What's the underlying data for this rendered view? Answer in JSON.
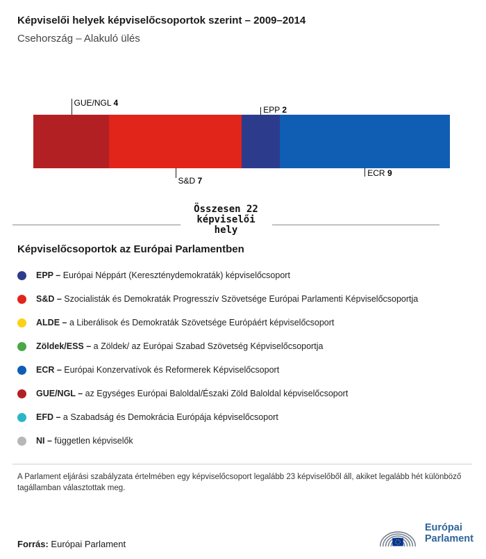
{
  "header": {
    "title": "Képviselői helyek képviselőcsoportok szerint – 2009–2014",
    "subtitle": "Csehország – Alakuló ülés"
  },
  "chart_data": {
    "type": "bar",
    "variant": "horizontal-stacked-seat-bar",
    "title": "Képviselői helyek képviselőcsoportok szerint – 2009–2014",
    "subtitle": "Csehország – Alakuló ülés",
    "total": 22,
    "total_label": "Összesen 22 képviselői hely",
    "segments": [
      {
        "name": "GUE/NGL",
        "value": 4,
        "color": "#b32024",
        "tier": "top-far"
      },
      {
        "name": "S&D",
        "value": 7,
        "color": "#e1251b",
        "tier": "bottom-far"
      },
      {
        "name": "EPP",
        "value": 2,
        "color": "#2d3b8d",
        "tier": "top-near"
      },
      {
        "name": "ECR",
        "value": 9,
        "color": "#0f5eb4",
        "tier": "bottom-near"
      }
    ]
  },
  "legend": {
    "title": "Képviselőcsoportok az Európai Parlamentben",
    "items": [
      {
        "abbr": "EPP –",
        "desc": "Európai Néppárt (Kereszténydemokraták) képviselőcsoport",
        "color": "#2d3b8d"
      },
      {
        "abbr": "S&D –",
        "desc": "Szocialisták és Demokraták Progresszív Szövetsége Európai Parlamenti Képviselőcsoportja",
        "color": "#e1251b"
      },
      {
        "abbr": "ALDE –",
        "desc": "a Liberálisok és Demokraták Szövetsége Európáért képviselőcsoport",
        "color": "#fdd116"
      },
      {
        "abbr": "Zöldek/ESS –",
        "desc": "a Zöldek/ az Európai Szabad Szövetség Képviselőcsoportja",
        "color": "#4ba747"
      },
      {
        "abbr": "ECR –",
        "desc": "Európai Konzervatívok és Reformerek Képviselőcsoport",
        "color": "#0f5eb4"
      },
      {
        "abbr": "GUE/NGL –",
        "desc": "az Egységes Európai Baloldal/Északi Zöld Baloldal képviselőcsoport",
        "color": "#b32024"
      },
      {
        "abbr": "EFD –",
        "desc": "a Szabadság és Demokrácia Európája képviselőcsoport",
        "color": "#2bb6c5"
      },
      {
        "abbr": "NI –",
        "desc": "független képviselők",
        "color": "#b7b7b7"
      }
    ]
  },
  "footnote": "A Parlament eljárási szabályzata értelmében egy képviselőcsoport legalább 23 képviselőből áll, akiket legalább hét különböző tagállamban választottak meg.",
  "source": {
    "label": "Forrás:",
    "text": "Európai Parlament"
  },
  "logo": {
    "line1": "Európai",
    "line2": "Parlament"
  }
}
